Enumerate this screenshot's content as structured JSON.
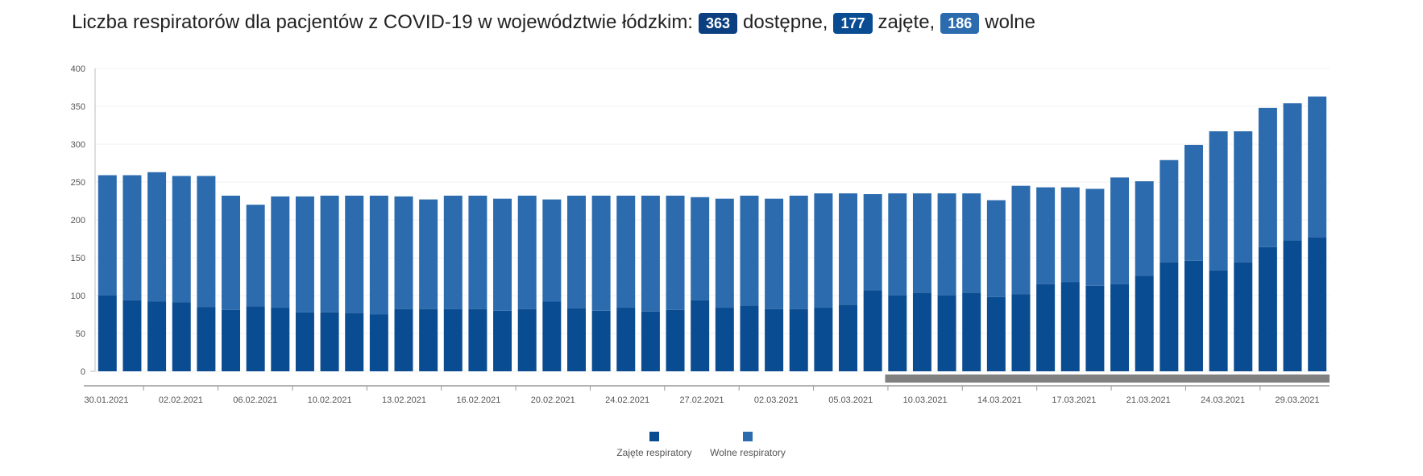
{
  "title": {
    "text": "Liczba respiratorów dla pacjentów z COVID-19 w województwie łódzkim:",
    "badges": [
      {
        "value": "363",
        "label": "dostępne,",
        "color": "#0b3f7f"
      },
      {
        "value": "177",
        "label": "zajęte,",
        "color": "#0a4c91"
      },
      {
        "value": "186",
        "label": "wolne",
        "color": "#2c6bae"
      }
    ]
  },
  "chart_data": {
    "type": "bar",
    "stacked": true,
    "ylim": [
      0,
      400
    ],
    "yticks": [
      0,
      50,
      100,
      150,
      200,
      250,
      300,
      350,
      400
    ],
    "grid": true,
    "legend_position": "bottom",
    "series": [
      {
        "name": "Zajęte respiratory",
        "color": "#0a4c91",
        "values": [
          100,
          94,
          92,
          91,
          85,
          81,
          86,
          84,
          78,
          78,
          77,
          75,
          82,
          82,
          82,
          82,
          80,
          82,
          92,
          83,
          80,
          84,
          79,
          81,
          94,
          84,
          87,
          82,
          82,
          84,
          88,
          107,
          100,
          104,
          100,
          104,
          98,
          102,
          115,
          118,
          113,
          115,
          126,
          144,
          146,
          133,
          144,
          164,
          173,
          177
        ]
      },
      {
        "name": "Wolne respiratory",
        "color": "#2c6bae",
        "values": [
          159,
          165,
          171,
          167,
          173,
          151,
          134,
          147,
          153,
          154,
          155,
          157,
          149,
          145,
          150,
          150,
          148,
          150,
          135,
          149,
          152,
          148,
          153,
          151,
          136,
          144,
          145,
          146,
          150,
          151,
          147,
          127,
          135,
          131,
          135,
          131,
          128,
          143,
          128,
          125,
          128,
          141,
          125,
          135,
          153,
          184,
          173,
          184,
          181,
          186
        ]
      }
    ],
    "x_tick_labels": [
      "30.01.2021",
      "02.02.2021",
      "06.02.2021",
      "10.02.2021",
      "13.02.2021",
      "16.02.2021",
      "20.02.2021",
      "24.02.2021",
      "27.02.2021",
      "02.03.2021",
      "05.03.2021",
      "10.03.2021",
      "14.03.2021",
      "17.03.2021",
      "21.03.2021",
      "24.03.2021",
      "29.03.2021"
    ],
    "scrollbar_range": [
      0.64,
      1.0
    ]
  }
}
